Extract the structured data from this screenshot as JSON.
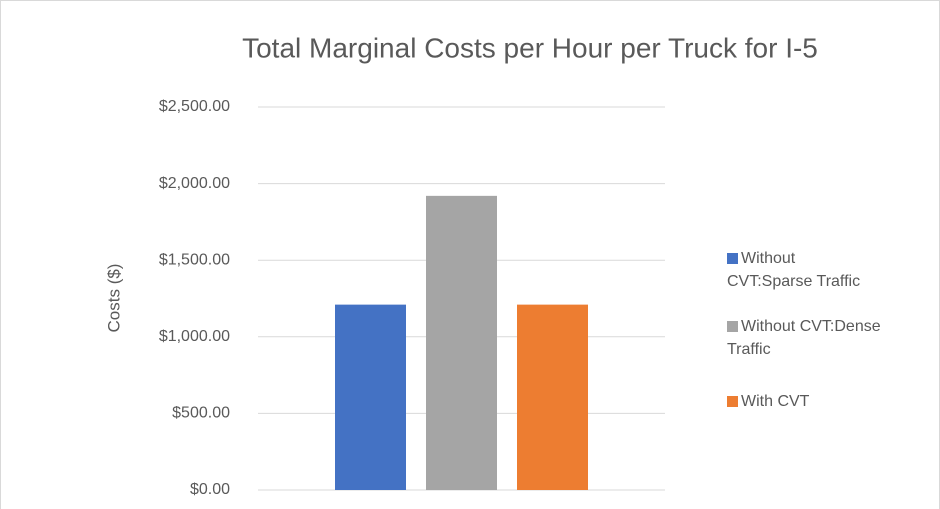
{
  "chart_data": {
    "type": "bar",
    "title": "Total Marginal Costs per Hour per Truck for I-5",
    "y_label": "Costs ($)",
    "categories": [
      null
    ],
    "series": [
      {
        "name": "Without CVT:Sparse Traffic",
        "color": "#4472c4",
        "values": [
          1210
        ]
      },
      {
        "name": "Without CVT:Dense Traffic",
        "color": "#a5a5a5",
        "values": [
          1920
        ]
      },
      {
        "name": "With CVT",
        "color": "#ed7d31",
        "values": [
          1210
        ]
      }
    ],
    "ylim": [
      0,
      2500
    ],
    "yticks": [
      {
        "value": 0,
        "label": "$0.00"
      },
      {
        "value": 500,
        "label": "$500.00"
      },
      {
        "value": 1000,
        "label": "$1,000.00"
      },
      {
        "value": 1500,
        "label": "$1,500.00"
      },
      {
        "value": 2000,
        "label": "$2,000.00"
      },
      {
        "value": 2500,
        "label": "$2,500.00"
      }
    ],
    "grid": true,
    "legend": "right"
  }
}
